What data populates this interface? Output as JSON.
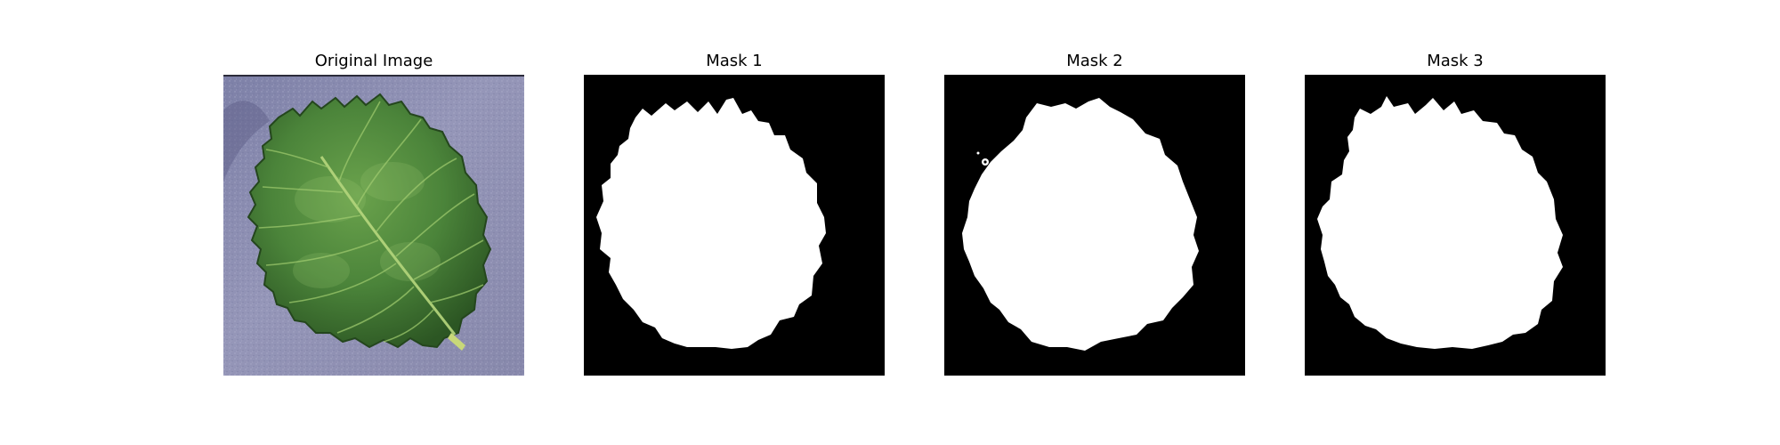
{
  "figure": {
    "panels": [
      {
        "title": "Original Image",
        "kind": "photo",
        "subject": "leaf-photo"
      },
      {
        "title": "Mask 1",
        "kind": "mask",
        "subject": "leaf-mask"
      },
      {
        "title": "Mask 2",
        "kind": "mask",
        "subject": "leaf-mask"
      },
      {
        "title": "Mask 3",
        "kind": "mask",
        "subject": "leaf-mask"
      }
    ],
    "colors": {
      "mask_background": "#000000",
      "mask_foreground": "#ffffff",
      "photo_background": "#8f90b0",
      "leaf_dark": "#2f5e27",
      "leaf_mid": "#4e8a3c",
      "leaf_light": "#8dbb5e",
      "leaf_vein": "#b7d77d"
    }
  }
}
